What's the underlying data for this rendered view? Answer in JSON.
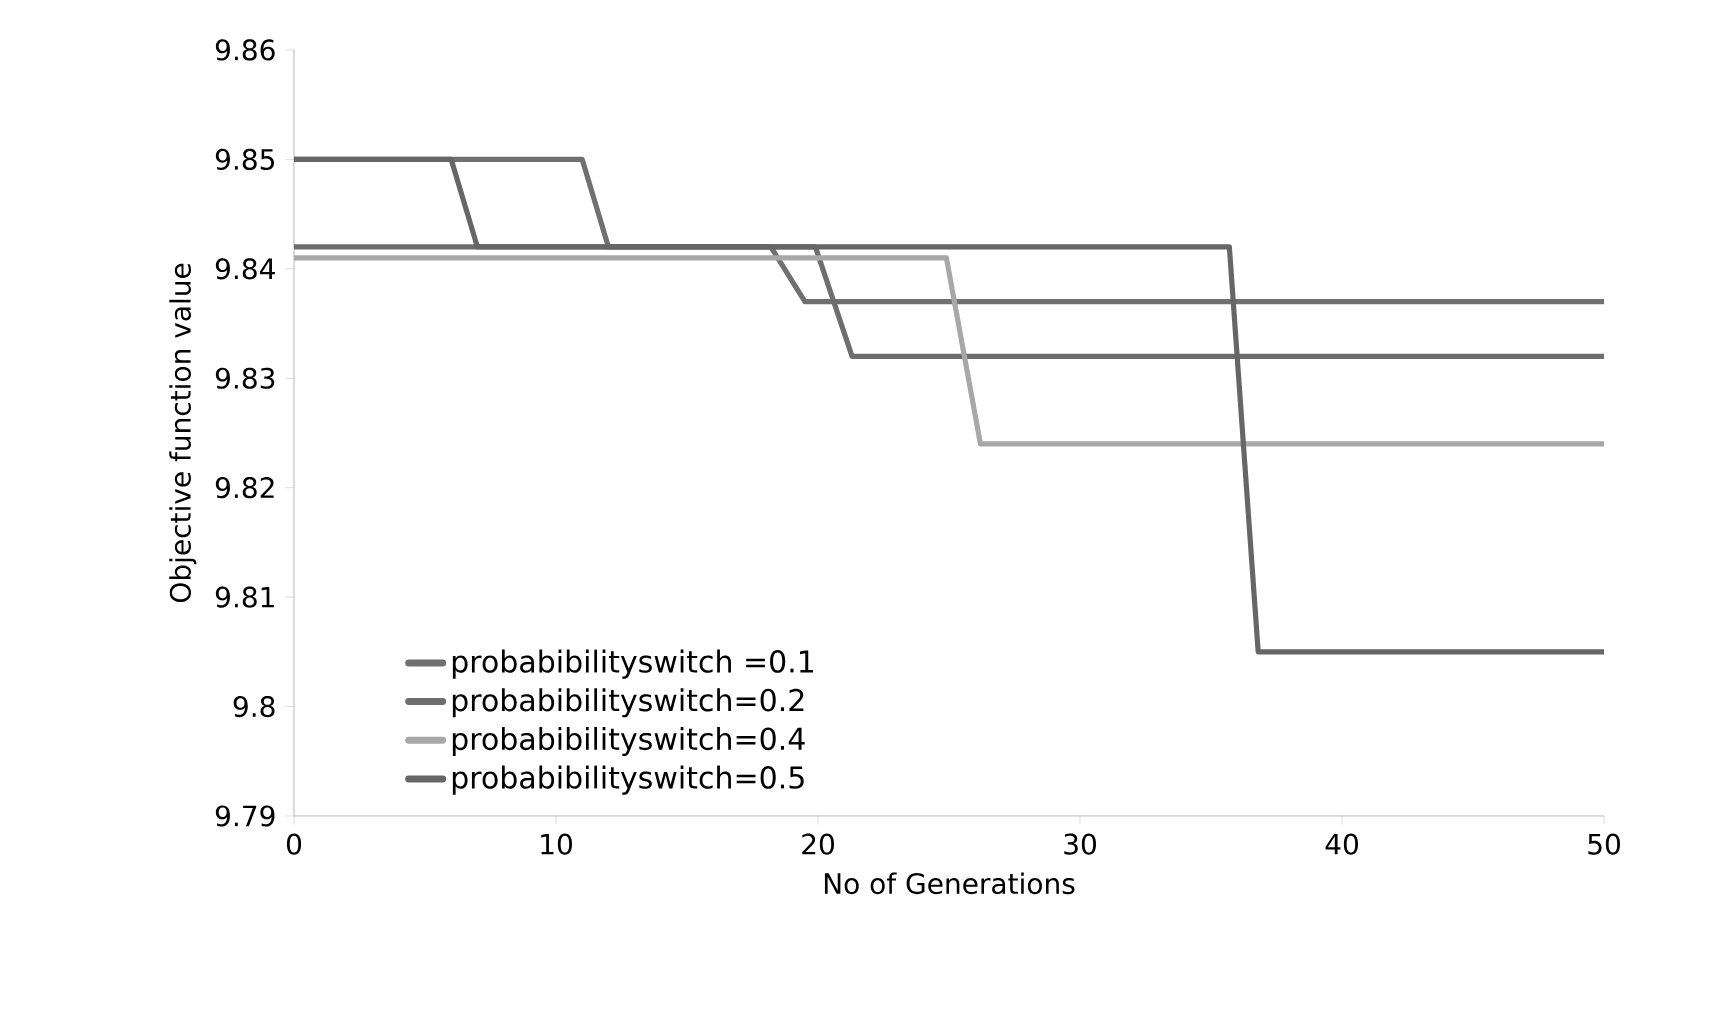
{
  "chart_data": {
    "type": "line",
    "xlabel": "No of Generations",
    "ylabel": "Objective function value",
    "xlim": [
      0,
      50
    ],
    "xticks": [
      0,
      10,
      20,
      30,
      40,
      50
    ],
    "ylim": [
      9.79,
      9.86
    ],
    "yticks": [
      9.79,
      9.8,
      9.81,
      9.82,
      9.83,
      9.84,
      9.85,
      9.86
    ],
    "grid": false,
    "legend": "bottom left",
    "marker": "none",
    "line_style": "solid",
    "series": [
      {
        "name": "probabibilityswitch =0.1",
        "color": "#707070",
        "x": [
          0,
          11,
          12,
          18.2,
          19.5,
          50
        ],
        "values": [
          9.85,
          9.85,
          9.842,
          9.842,
          9.837,
          9.837
        ]
      },
      {
        "name": "probabibilityswitch=0.2",
        "color": "#6e6e6e",
        "x": [
          0,
          19.9,
          21.3,
          50
        ],
        "values": [
          9.842,
          9.842,
          9.832,
          9.832
        ]
      },
      {
        "name": "probabibilityswitch=0.4",
        "color": "#a8a8a8",
        "x": [
          0,
          24.9,
          26.2,
          50
        ],
        "values": [
          9.841,
          9.841,
          9.824,
          9.824
        ]
      },
      {
        "name": "probabibilityswitch=0.5",
        "color": "#666666",
        "x": [
          0,
          6,
          7,
          35.7,
          36.8,
          50
        ],
        "values": [
          9.85,
          9.85,
          9.842,
          9.842,
          9.805,
          9.805
        ]
      }
    ]
  }
}
